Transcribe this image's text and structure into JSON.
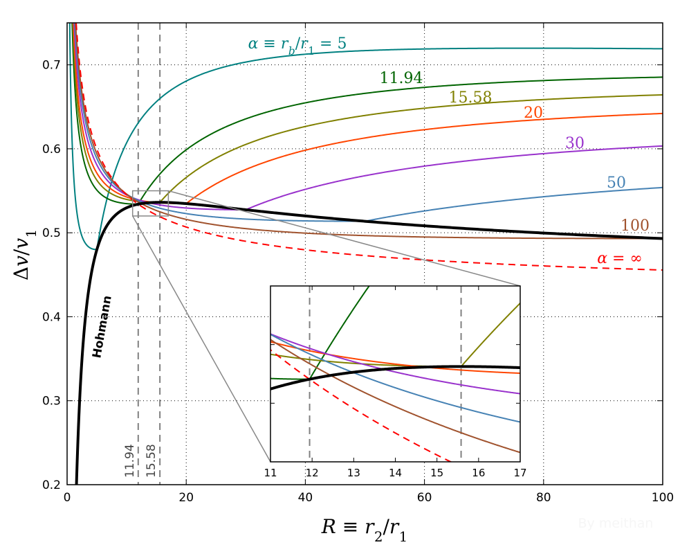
{
  "chart_data": {
    "type": "line",
    "xlabel": "R ≡ r_2/r_1",
    "ylabel": "Δv/v_1",
    "xlim": [
      0,
      100
    ],
    "ylim": [
      0.2,
      0.75
    ],
    "xticks": [
      "0",
      "20",
      "40",
      "60",
      "80",
      "100"
    ],
    "yticks": [
      "0.2",
      "0.3",
      "0.4",
      "0.5",
      "0.6",
      "0.7"
    ],
    "grid": true,
    "hohmann": {
      "name": "Hohmann",
      "color": "#000000"
    },
    "series": [
      {
        "name": "α ≡ r_b/r_1 = 5",
        "alpha": 5,
        "color": "#008080"
      },
      {
        "name": "11.94",
        "alpha": 11.94,
        "color": "#006400"
      },
      {
        "name": "15.58",
        "alpha": 15.58,
        "color": "#808000"
      },
      {
        "name": "20",
        "alpha": 20,
        "color": "#ff4500"
      },
      {
        "name": "30",
        "alpha": 30,
        "color": "#9932cc"
      },
      {
        "name": "50",
        "alpha": 50,
        "color": "#4682b4"
      },
      {
        "name": "100",
        "alpha": 100,
        "color": "#a0522d"
      },
      {
        "name": "α = ∞",
        "alpha": "infinity",
        "color": "#ff0000",
        "style": "dashed"
      }
    ],
    "reference_lines": [
      {
        "x": 11.94,
        "label": "11.94",
        "color": "#808080",
        "style": "dashed"
      },
      {
        "x": 15.58,
        "label": "15.58",
        "color": "#808080",
        "style": "dashed"
      }
    ],
    "inset": {
      "xlim": [
        11,
        17
      ],
      "ylim": [
        0.52,
        0.55
      ],
      "xticks": [
        "11",
        "12",
        "13",
        "14",
        "15",
        "16",
        "17"
      ]
    }
  },
  "watermark": "By meithan"
}
